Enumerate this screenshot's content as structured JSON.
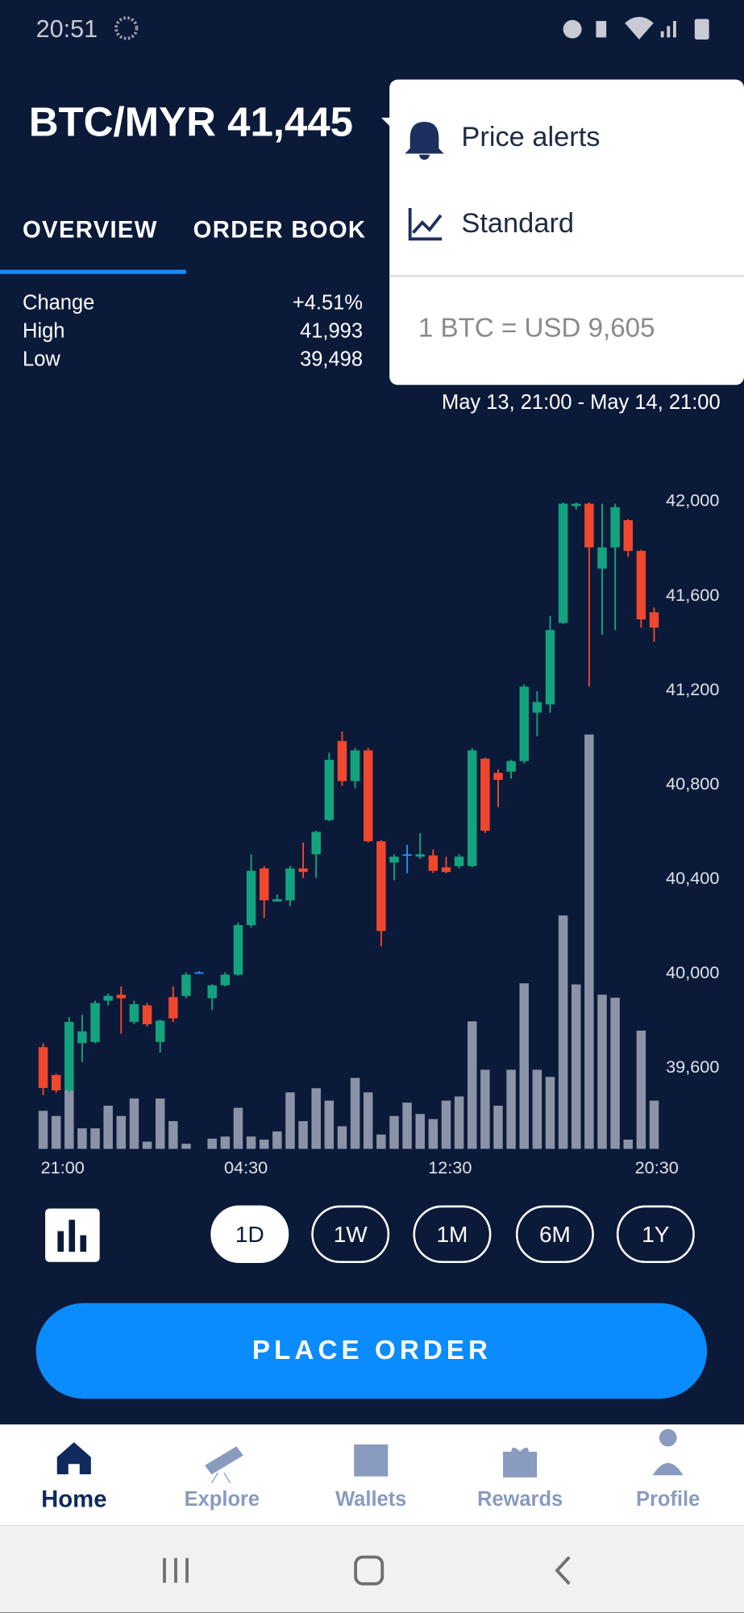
{
  "status_bar": {
    "time": "20:51"
  },
  "header": {
    "title": "BTC/MYR 41,445"
  },
  "tabs": {
    "items": [
      "OVERVIEW",
      "ORDER BOOK"
    ],
    "selected_index": 0
  },
  "stats": {
    "rows": [
      {
        "label": "Change",
        "value": "+4.51%"
      },
      {
        "label": "High",
        "value": "41,993"
      },
      {
        "label": "Low",
        "value": "39,498"
      }
    ]
  },
  "menu": {
    "items": [
      "Price alerts",
      "Standard"
    ],
    "rate": "1 BTC = USD 9,605"
  },
  "date_range": "May 13, 21:00 - May 14, 21:00",
  "chart_data": {
    "type": "candlestick",
    "open": [
      39683,
      39565,
      39500,
      39700,
      39705,
      39880,
      39905,
      39790,
      39860,
      39705,
      39895,
      39900,
      40000,
      39890,
      39945,
      39990,
      40200,
      40440,
      40300,
      40305,
      40440,
      40500,
      40645,
      40980,
      40810,
      40940,
      40555,
      40465,
      40500,
      40490,
      40495,
      40445,
      40450,
      40450,
      40905,
      40845,
      40850,
      40895,
      41100,
      41135,
      41480,
      41975,
      41985,
      41710,
      41800,
      41915,
      41785,
      41525
    ],
    "close": [
      39510,
      39500,
      39790,
      39750,
      39870,
      39900,
      39890,
      39865,
      39780,
      39795,
      39805,
      39990,
      40000,
      39945,
      39990,
      40200,
      40430,
      40305,
      40310,
      40440,
      40425,
      40595,
      40900,
      40810,
      40940,
      40555,
      40175,
      40490,
      40500,
      40500,
      40430,
      40425,
      40490,
      40940,
      40600,
      40815,
      40895,
      41210,
      41145,
      41450,
      41985,
      41985,
      41800,
      41800,
      41970,
      41785,
      41495,
      41460
    ],
    "high": [
      39700,
      39570,
      39810,
      39820,
      39880,
      39910,
      39940,
      39880,
      39870,
      39800,
      39940,
      40000,
      40005,
      39950,
      40000,
      40210,
      40500,
      40450,
      40330,
      40450,
      40550,
      40600,
      40930,
      41020,
      40950,
      40950,
      40560,
      40500,
      40540,
      40590,
      40520,
      40490,
      40500,
      40950,
      40910,
      40860,
      40900,
      41220,
      41190,
      41510,
      41990,
      41990,
      41990,
      41985,
      41985,
      41920,
      41790,
      41545
    ],
    "low": [
      39480,
      39490,
      39490,
      39620,
      39700,
      39860,
      39740,
      39780,
      39770,
      39660,
      39790,
      39890,
      39995,
      39840,
      39940,
      39985,
      40190,
      40230,
      40300,
      40280,
      40400,
      40400,
      40640,
      40790,
      40780,
      40550,
      40110,
      40390,
      40420,
      40480,
      40420,
      40420,
      40440,
      40445,
      40590,
      40700,
      40820,
      40885,
      41000,
      41100,
      41475,
      41960,
      41210,
      41430,
      41450,
      41760,
      41460,
      41400
    ],
    "volume": [
      37,
      32,
      57,
      20,
      20,
      42,
      32,
      49,
      7,
      49,
      27,
      5,
      0,
      10,
      12,
      40,
      12,
      9,
      17,
      55,
      27,
      59,
      47,
      22,
      69,
      55,
      14,
      32,
      45,
      34,
      29,
      47,
      51,
      124,
      77,
      42,
      77,
      161,
      77,
      70,
      227,
      160,
      403,
      150,
      147,
      9,
      115,
      47
    ],
    "up_color": "#14a37f",
    "down_color": "#f0472f",
    "flat_color": "#2e8bff",
    "volume_color": "#8a93a8",
    "ylim": [
      39252,
      42070
    ],
    "yticks": [
      {
        "value": 42000,
        "label": "42,000"
      },
      {
        "value": 41600,
        "label": "41,600"
      },
      {
        "value": 41200,
        "label": "41,200"
      },
      {
        "value": 40800,
        "label": "40,800"
      },
      {
        "value": 40400,
        "label": "40,400"
      },
      {
        "value": 40000,
        "label": "40,000"
      },
      {
        "value": 39600,
        "label": "39,600"
      }
    ],
    "xticks": [
      {
        "value": 1.5,
        "label": "21:00"
      },
      {
        "value": 15.6,
        "label": "04:30"
      },
      {
        "value": 31.3,
        "label": "12:30"
      },
      {
        "value": 47.2,
        "label": "20:30"
      }
    ]
  },
  "range_buttons": {
    "items": [
      "1D",
      "1W",
      "1M",
      "6M",
      "1Y"
    ],
    "selected_index": 0
  },
  "place_order": "PLACE ORDER",
  "nav": {
    "items": [
      "Home",
      "Explore",
      "Wallets",
      "Rewards",
      "Profile"
    ],
    "selected_index": 0
  }
}
